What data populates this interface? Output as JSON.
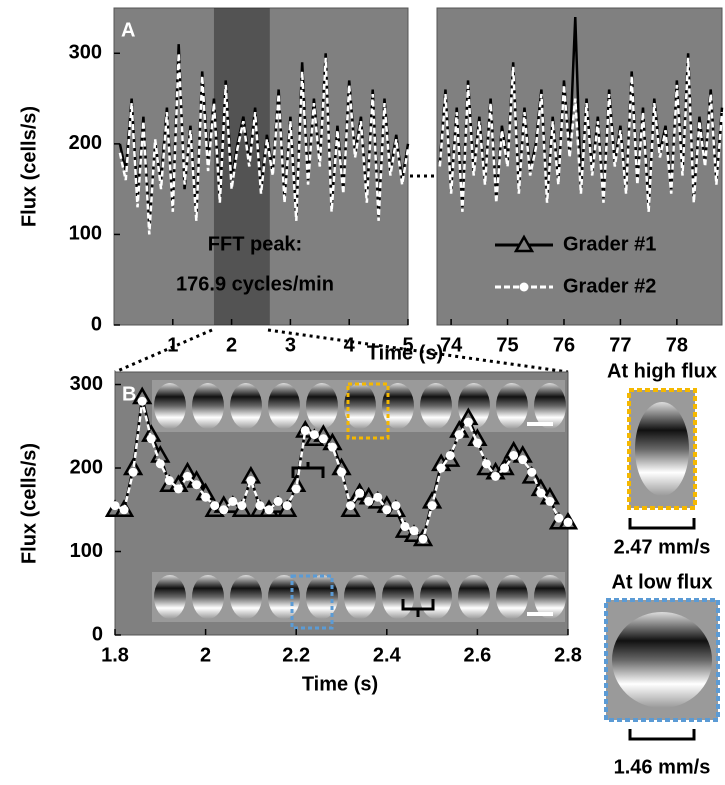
{
  "chart_data": [
    {
      "type": "line",
      "panel_label": "A",
      "ylabel": "Flux (cells/s)",
      "xlabel": "Time (s)",
      "annotations": [
        "FFT peak:",
        "176.9 cycles/min"
      ],
      "xlim": [
        0,
        5
      ],
      "xticks": [
        1,
        2,
        3,
        4,
        5
      ],
      "ylim": [
        0,
        350
      ],
      "yticks": [
        0,
        100,
        200,
        300
      ],
      "highlight_x": [
        1.7,
        2.65
      ],
      "background": "#808080",
      "show_markers": false,
      "x": [
        0.1,
        0.2,
        0.3,
        0.4,
        0.5,
        0.6,
        0.7,
        0.8,
        0.9,
        1.0,
        1.1,
        1.2,
        1.3,
        1.4,
        1.5,
        1.6,
        1.7,
        1.8,
        1.9,
        2.0,
        2.1,
        2.2,
        2.3,
        2.4,
        2.5,
        2.6,
        2.7,
        2.8,
        2.9,
        3.0,
        3.1,
        3.2,
        3.3,
        3.4,
        3.5,
        3.6,
        3.7,
        3.8,
        3.9,
        4.0,
        4.1,
        4.2,
        4.3,
        4.4,
        4.5,
        4.6,
        4.7,
        4.8,
        4.9,
        5.0
      ],
      "series": [
        {
          "color": "#000000",
          "marker": "triangle",
          "dash": false,
          "values": [
            200,
            170,
            250,
            140,
            230,
            110,
            200,
            160,
            240,
            130,
            310,
            150,
            220,
            120,
            280,
            180,
            250,
            140,
            270,
            160,
            200,
            230,
            180,
            240,
            150,
            210,
            170,
            260,
            140,
            230,
            120,
            290,
            160,
            250,
            180,
            300,
            130,
            220,
            150,
            270,
            190,
            230,
            140,
            260,
            120,
            250,
            170,
            210,
            160,
            200
          ]
        },
        {
          "color": "#ffffff",
          "marker": "circle",
          "dash": true,
          "values": [
            190,
            160,
            245,
            130,
            225,
            100,
            205,
            150,
            235,
            125,
            300,
            155,
            215,
            115,
            275,
            170,
            245,
            135,
            265,
            150,
            195,
            225,
            175,
            235,
            145,
            205,
            165,
            255,
            135,
            225,
            115,
            280,
            155,
            245,
            175,
            295,
            125,
            215,
            145,
            265,
            185,
            225,
            135,
            255,
            115,
            245,
            165,
            205,
            155,
            195
          ]
        }
      ]
    },
    {
      "type": "line",
      "xlim": [
        73.75,
        78.8
      ],
      "xticks": [
        74,
        75,
        76,
        77,
        78
      ],
      "ylim": [
        0,
        350
      ],
      "background": "#808080",
      "show_markers": false,
      "legend": "lower-left",
      "x": [
        73.8,
        73.9,
        74.0,
        74.1,
        74.2,
        74.3,
        74.4,
        74.5,
        74.6,
        74.7,
        74.8,
        74.9,
        75.0,
        75.1,
        75.2,
        75.3,
        75.4,
        75.5,
        75.6,
        75.7,
        75.8,
        75.9,
        76.0,
        76.1,
        76.2,
        76.3,
        76.4,
        76.5,
        76.6,
        76.7,
        76.8,
        76.9,
        77.0,
        77.1,
        77.2,
        77.3,
        77.4,
        77.5,
        77.6,
        77.7,
        77.8,
        77.9,
        78.0,
        78.1,
        78.2,
        78.3,
        78.4,
        78.5,
        78.6,
        78.7,
        78.8
      ],
      "series": [
        {
          "name": "Grader #1",
          "color": "#000000",
          "marker": "triangle",
          "dash": false,
          "values": [
            180,
            260,
            150,
            240,
            130,
            270,
            170,
            230,
            160,
            250,
            140,
            220,
            180,
            290,
            150,
            240,
            170,
            200,
            260,
            140,
            230,
            160,
            270,
            190,
            340,
            150,
            250,
            170,
            230,
            140,
            260,
            180,
            220,
            150,
            280,
            160,
            240,
            130,
            250,
            190,
            220,
            150,
            270,
            170,
            300,
            140,
            230,
            180,
            260,
            160,
            240
          ]
        },
        {
          "name": "Grader #2",
          "color": "#ffffff",
          "marker": "circle",
          "dash": true,
          "values": [
            175,
            255,
            145,
            235,
            125,
            265,
            165,
            225,
            155,
            245,
            135,
            215,
            175,
            285,
            145,
            235,
            165,
            195,
            255,
            135,
            225,
            155,
            265,
            185,
            250,
            145,
            245,
            165,
            225,
            135,
            255,
            175,
            215,
            145,
            275,
            155,
            235,
            125,
            245,
            185,
            215,
            145,
            265,
            165,
            295,
            135,
            225,
            175,
            255,
            155,
            235
          ]
        }
      ]
    },
    {
      "type": "line",
      "panel_label": "B",
      "ylabel": "Flux (cells/s)",
      "xlabel": "Time (s)",
      "xlim": [
        1.8,
        2.8
      ],
      "xticks": [
        1.8,
        2,
        2.2,
        2.4,
        2.6,
        2.8
      ],
      "ylim": [
        0,
        315
      ],
      "yticks": [
        0,
        100,
        200,
        300
      ],
      "background": "#808080",
      "show_markers": true,
      "x": [
        1.8,
        1.82,
        1.84,
        1.86,
        1.88,
        1.9,
        1.92,
        1.94,
        1.96,
        1.98,
        2.0,
        2.02,
        2.04,
        2.06,
        2.08,
        2.1,
        2.12,
        2.14,
        2.16,
        2.18,
        2.2,
        2.22,
        2.24,
        2.26,
        2.28,
        2.3,
        2.32,
        2.34,
        2.36,
        2.38,
        2.4,
        2.42,
        2.44,
        2.46,
        2.48,
        2.5,
        2.52,
        2.54,
        2.56,
        2.58,
        2.6,
        2.62,
        2.64,
        2.66,
        2.68,
        2.7,
        2.72,
        2.74,
        2.76,
        2.78,
        2.8
      ],
      "series": [
        {
          "color": "#000000",
          "marker": "triangle",
          "dash": false,
          "values": [
            150,
            150,
            200,
            285,
            240,
            215,
            180,
            180,
            195,
            185,
            170,
            150,
            155,
            155,
            150,
            190,
            150,
            150,
            155,
            150,
            180,
            245,
            235,
            240,
            230,
            200,
            150,
            170,
            165,
            160,
            155,
            150,
            125,
            120,
            115,
            160,
            205,
            210,
            245,
            260,
            235,
            200,
            195,
            200,
            220,
            215,
            190,
            175,
            165,
            135,
            135
          ]
        },
        {
          "color": "#ffffff",
          "marker": "circle",
          "dash": true,
          "values": [
            155,
            150,
            195,
            280,
            235,
            205,
            185,
            175,
            190,
            180,
            165,
            155,
            150,
            160,
            155,
            185,
            155,
            150,
            160,
            155,
            175,
            245,
            240,
            235,
            225,
            195,
            155,
            170,
            160,
            165,
            150,
            155,
            130,
            125,
            115,
            155,
            200,
            215,
            240,
            255,
            230,
            205,
            190,
            200,
            215,
            210,
            195,
            170,
            160,
            140,
            135
          ]
        }
      ],
      "insets": [
        {
          "title": "At high flux",
          "label": "2.47 mm/s",
          "color": "#f5b800"
        },
        {
          "title": "At low flux",
          "label": "1.46 mm/s",
          "color": "#5b9bd5"
        }
      ]
    }
  ]
}
